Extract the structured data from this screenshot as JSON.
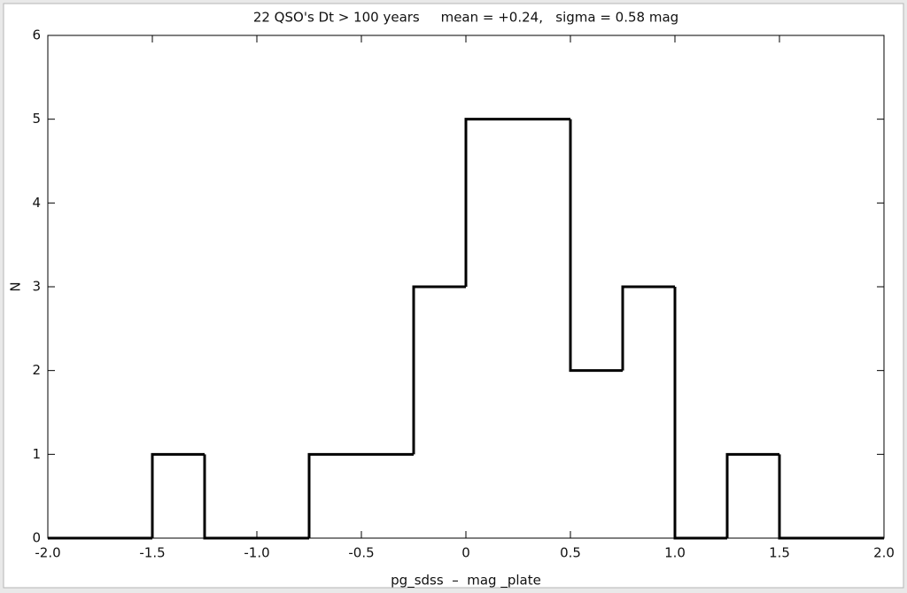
{
  "chart_data": {
    "type": "histogram",
    "title": "22 QSO's Dt > 100 years     mean = +0.24,   sigma = 0.58 mag",
    "x_label": "pg_sdss  –  mag _plate",
    "y_label": "N",
    "bins": [
      -2,
      -1.75,
      -1.5,
      -1.25,
      -1,
      -0.75,
      -0.5,
      -0.25,
      0,
      0.25,
      0.5,
      0.75,
      1,
      1.25,
      1.5,
      1.75,
      2
    ],
    "values": [
      0,
      0,
      1,
      0,
      0,
      1,
      1,
      3,
      5,
      5,
      2,
      3,
      0,
      1,
      0,
      0
    ],
    "color": "#000000",
    "xlim": [
      -2,
      2
    ],
    "xticks": [
      {
        "value": -2,
        "label": "-2.0"
      },
      -1.5,
      {
        "value": -1,
        "label": "-1.0"
      },
      -0.5,
      0,
      0.5,
      {
        "value": 1,
        "label": "1.0"
      },
      1.5,
      {
        "value": 2,
        "label": "2.0"
      }
    ],
    "ylim": [
      0,
      6
    ],
    "yticks": [
      0,
      1,
      2,
      3,
      4,
      5,
      6
    ]
  }
}
